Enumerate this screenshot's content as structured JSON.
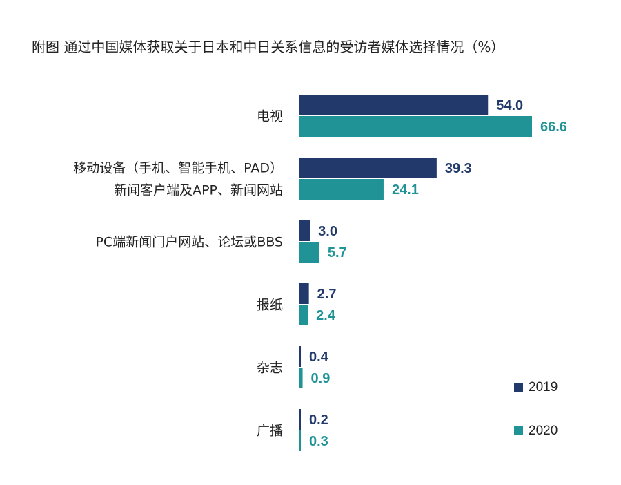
{
  "title": "附图 通过中国媒体获取关于日本和中日关系信息的受访者媒体选择情况（%）",
  "colors": {
    "series_2019": "#213a6b",
    "series_2020": "#1f9396"
  },
  "chart_data": {
    "type": "bar",
    "orientation": "horizontal",
    "title": "附图 通过中国媒体获取关于日本和中日关系信息的受访者媒体选择情况（%）",
    "categories": [
      [
        "电视"
      ],
      [
        "移动设备（手机、智能手机、PAD）",
        "新闻客户端及APP、新闻网站"
      ],
      [
        "PC端新闻门户网站、论坛或BBS"
      ],
      [
        "报纸"
      ],
      [
        "杂志"
      ],
      [
        "广播"
      ]
    ],
    "series": [
      {
        "name": "2019",
        "values": [
          54.0,
          39.3,
          3.0,
          2.7,
          0.4,
          0.2
        ],
        "labels": [
          "54.0",
          "39.3",
          "3.0",
          "2.7",
          "0.4",
          "0.2"
        ]
      },
      {
        "name": "2020",
        "values": [
          66.6,
          24.1,
          5.7,
          2.4,
          0.9,
          0.3
        ],
        "labels": [
          "66.6",
          "24.1",
          "5.7",
          "2.4",
          "0.9",
          "0.3"
        ]
      }
    ],
    "xlim": [
      0,
      70
    ],
    "grid": false,
    "legend_position": "bottom-right"
  }
}
